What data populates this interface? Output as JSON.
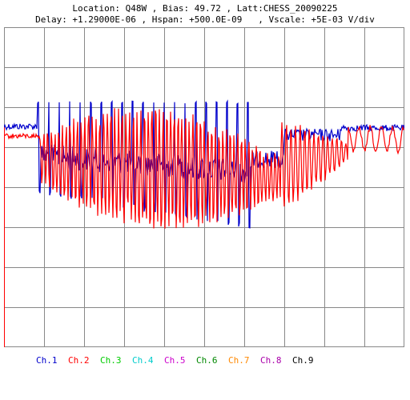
{
  "header": {
    "line1": "Location: Q48W , Bias: 49.72 , Latt:CHESS_20090225",
    "line2": "Delay: +1.29000E-06 , Hspan: +500.0E-09   , Vscale: +5E-03 V/div"
  },
  "legend": [
    {
      "label": "Ch.1",
      "color": "#0000cc"
    },
    {
      "label": "Ch.2",
      "color": "#ff0000"
    },
    {
      "label": "Ch.3",
      "color": "#00cc00"
    },
    {
      "label": "Ch.4",
      "color": "#00cccc"
    },
    {
      "label": "Ch.5",
      "color": "#cc00cc"
    },
    {
      "label": "Ch.6",
      "color": "#008800"
    },
    {
      "label": "Ch.7",
      "color": "#ff8800"
    },
    {
      "label": "Ch.8",
      "color": "#aa00aa"
    },
    {
      "label": "Ch.9",
      "color": "#000000"
    }
  ],
  "chart_data": {
    "type": "line",
    "grid": true,
    "divisions": {
      "x": 10,
      "y": 8
    },
    "series": [
      {
        "name": "Ch.1",
        "color": "#0000cc",
        "channel": 1
      },
      {
        "name": "Ch.2",
        "color": "#ff0000",
        "channel": 2
      }
    ]
  }
}
